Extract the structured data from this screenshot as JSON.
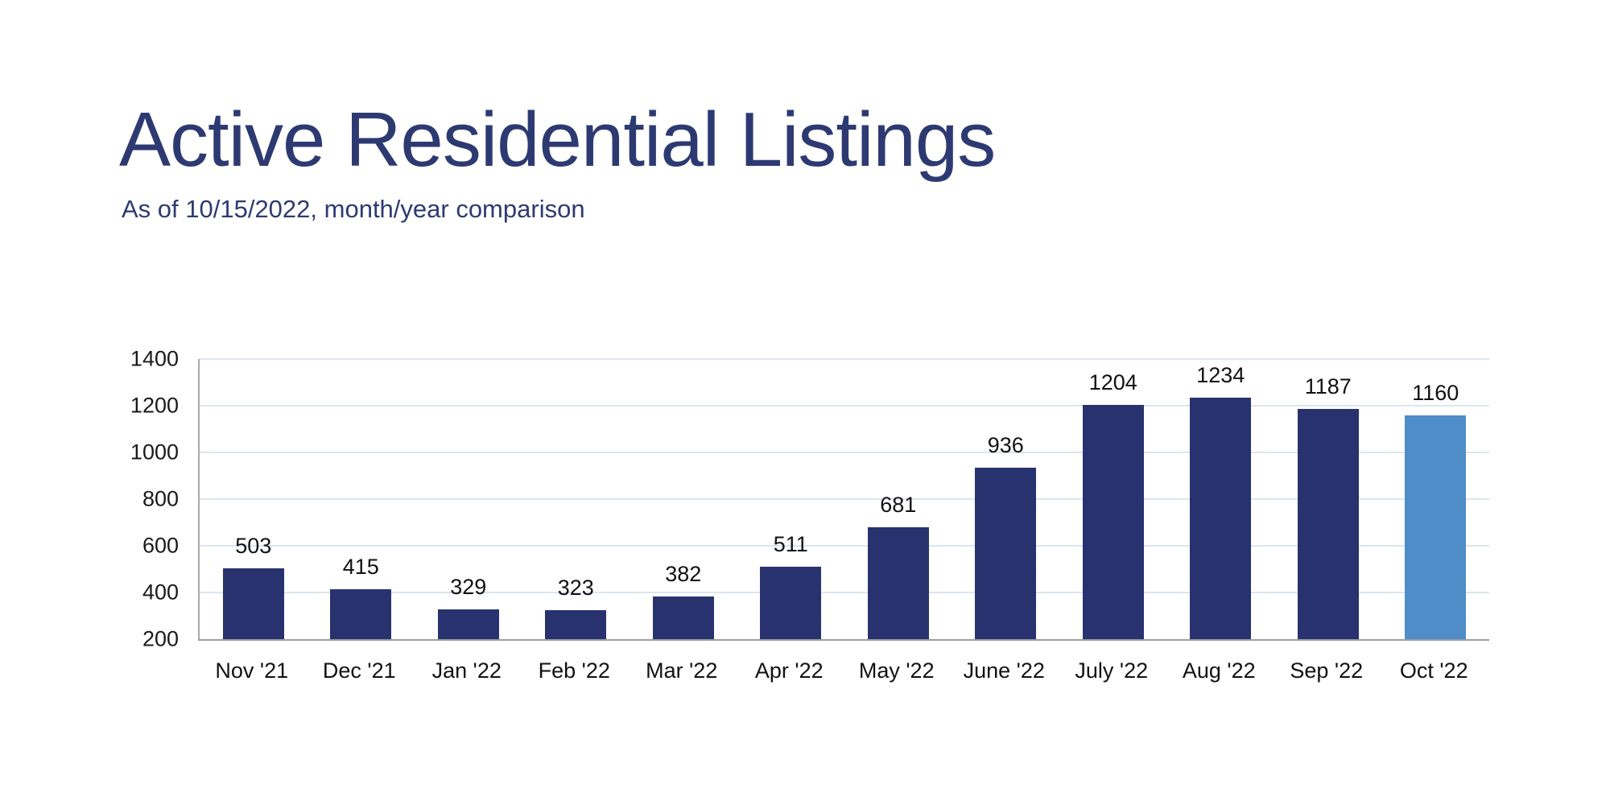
{
  "header": {
    "title": "Active Residential Listings",
    "subtitle": "As of 10/15/2022, month/year comparison"
  },
  "chart_data": {
    "type": "bar",
    "title": "Active Residential Listings",
    "subtitle": "As of 10/15/2022, month/year comparison",
    "categories": [
      "Nov '21",
      "Dec '21",
      "Jan '22",
      "Feb '22",
      "Mar '22",
      "Apr '22",
      "May '22",
      "June '22",
      "July '22",
      "Aug '22",
      "Sep '22",
      "Oct '22"
    ],
    "values": [
      503,
      415,
      329,
      323,
      382,
      511,
      681,
      936,
      1204,
      1234,
      1187,
      1160
    ],
    "value_labels": true,
    "highlight_index": 11,
    "xlabel": "",
    "ylabel": "",
    "ylim": [
      200,
      1400
    ],
    "yticks": [
      200,
      400,
      600,
      800,
      1000,
      1200,
      1400
    ],
    "grid": true,
    "legend": false,
    "colors": {
      "bar_default": "#28326e",
      "bar_highlight": "#4e8dc8",
      "title_text": "#2d3a72",
      "gridline": "#dce5f2",
      "axis_line": "#a0a0a0",
      "tick_text": "#1a1a1a",
      "background": "#ffffff"
    }
  }
}
